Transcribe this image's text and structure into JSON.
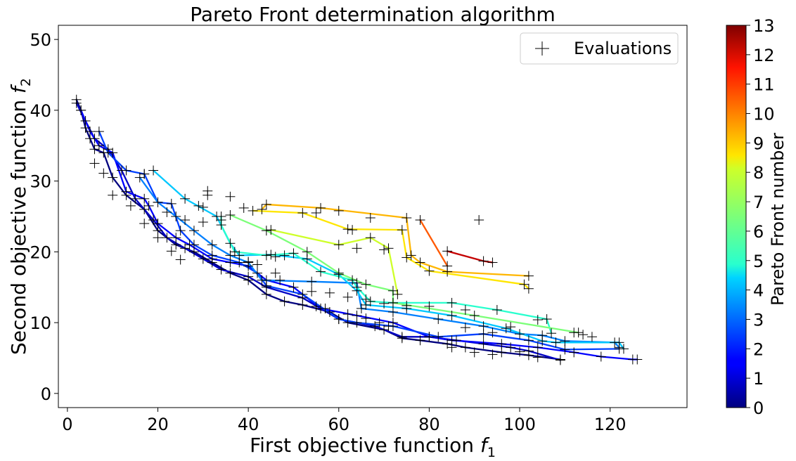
{
  "chart_data": {
    "type": "line",
    "title": "Pareto Front determination algorithm",
    "xlabel": "First objective function",
    "xlabel_symbol": "f",
    "xlabel_subscript": "1",
    "ylabel": "Second objective function",
    "ylabel_symbol": "f",
    "ylabel_subscript": "2",
    "xlim": [
      -2,
      137
    ],
    "ylim": [
      -2,
      52
    ],
    "xticks": [
      0,
      20,
      40,
      60,
      80,
      100,
      120
    ],
    "yticks": [
      0,
      10,
      20,
      30,
      40,
      50
    ],
    "legend": {
      "label": "Evaluations",
      "placement": "top-right"
    },
    "colorbar": {
      "label": "Pareto Front number",
      "min": 0,
      "max": 13,
      "ticks": [
        0,
        1,
        2,
        3,
        4,
        5,
        6,
        7,
        8,
        9,
        10,
        11,
        12,
        13
      ],
      "colormap": "jet"
    },
    "series": [
      {
        "name": "Front 0",
        "front": 0,
        "color": "#00007f",
        "points": [
          [
            2,
            41.5
          ],
          [
            3,
            40
          ],
          [
            4,
            37.5
          ],
          [
            5,
            36
          ],
          [
            6,
            34.5
          ],
          [
            8,
            34
          ],
          [
            10,
            30.5
          ],
          [
            13,
            28
          ],
          [
            17,
            26
          ],
          [
            20,
            23
          ],
          [
            24,
            21
          ],
          [
            28,
            20
          ],
          [
            32,
            18.5
          ],
          [
            36,
            17
          ],
          [
            40,
            16
          ],
          [
            44,
            14
          ],
          [
            48,
            13
          ],
          [
            52,
            12.5
          ],
          [
            58,
            11.5
          ],
          [
            62,
            10
          ],
          [
            70,
            9
          ],
          [
            74,
            7.8
          ],
          [
            78,
            7.5
          ],
          [
            84,
            7
          ],
          [
            88,
            6.5
          ],
          [
            96,
            5.8
          ],
          [
            102,
            5.4
          ],
          [
            109,
            4.8
          ]
        ]
      },
      {
        "name": "Front 1",
        "front": 1,
        "color": "#0000c4",
        "points": [
          [
            2,
            41
          ],
          [
            4,
            38.5
          ],
          [
            6,
            36
          ],
          [
            9,
            34.5
          ],
          [
            12,
            31.5
          ],
          [
            15,
            27.5
          ],
          [
            19,
            24.5
          ],
          [
            22,
            22
          ],
          [
            26,
            20.5
          ],
          [
            30,
            19
          ],
          [
            34,
            17.5
          ],
          [
            40,
            16.5
          ],
          [
            44,
            15
          ],
          [
            52,
            13.5
          ],
          [
            60,
            10.5
          ],
          [
            68,
            9.5
          ],
          [
            74,
            8
          ],
          [
            80,
            8
          ],
          [
            86,
            7.5
          ],
          [
            92,
            7
          ],
          [
            98,
            6.5
          ],
          [
            102,
            6
          ],
          [
            109,
            4.7
          ]
        ]
      },
      {
        "name": "Front 2",
        "front": 2,
        "color": "#0000ff",
        "points": [
          [
            3,
            40
          ],
          [
            5,
            37
          ],
          [
            7,
            35
          ],
          [
            10,
            34
          ],
          [
            13,
            28.5
          ],
          [
            17,
            27.5
          ],
          [
            18,
            26.5
          ],
          [
            20,
            24
          ],
          [
            24,
            22
          ],
          [
            27,
            21
          ],
          [
            32,
            19
          ],
          [
            36,
            18.5
          ],
          [
            40,
            18
          ],
          [
            44,
            16
          ],
          [
            50,
            15
          ],
          [
            56,
            12
          ],
          [
            64,
            11
          ],
          [
            72,
            10
          ],
          [
            80,
            8
          ],
          [
            85,
            7.5
          ],
          [
            96,
            7
          ],
          [
            104,
            6.5
          ],
          [
            112,
            5.8
          ],
          [
            118,
            5.2
          ],
          [
            125,
            4.8
          ],
          [
            126,
            4.8
          ]
        ]
      },
      {
        "name": "Front 3",
        "front": 3,
        "color": "#0040ff",
        "points": [
          [
            7,
            37
          ],
          [
            9,
            34
          ],
          [
            13,
            31.5
          ],
          [
            17,
            31
          ],
          [
            20,
            27
          ],
          [
            23,
            26.8
          ],
          [
            25,
            23
          ],
          [
            28,
            21
          ],
          [
            32,
            19.5
          ],
          [
            38,
            18.5
          ],
          [
            42,
            17
          ],
          [
            44,
            15.2
          ],
          [
            52,
            14
          ],
          [
            60,
            10.5
          ],
          [
            64,
            10
          ],
          [
            72,
            9.5
          ],
          [
            82,
            8
          ],
          [
            92,
            8.4
          ],
          [
            102,
            7.5
          ],
          [
            110,
            6.2
          ],
          [
            122,
            6.3
          ]
        ]
      },
      {
        "name": "Front 4",
        "front": 4,
        "color": "#0080ff",
        "points": [
          [
            16,
            30.5
          ],
          [
            20,
            27
          ],
          [
            24,
            25
          ],
          [
            28,
            23
          ],
          [
            32,
            21
          ],
          [
            36,
            19.5
          ],
          [
            40,
            18.5
          ],
          [
            43,
            16
          ],
          [
            54,
            15.8
          ],
          [
            64,
            15.6
          ],
          [
            65,
            12
          ],
          [
            72,
            11.5
          ],
          [
            82,
            10.5
          ],
          [
            92,
            9.5
          ],
          [
            100,
            8.4
          ],
          [
            105,
            8.2
          ],
          [
            110,
            7.4
          ],
          [
            121,
            7.2
          ],
          [
            122,
            6.5
          ]
        ]
      },
      {
        "name": "Front 5",
        "front": 5,
        "color": "#00c8ff",
        "points": [
          [
            19,
            31.5
          ],
          [
            26,
            27.5
          ],
          [
            33,
            25
          ],
          [
            36,
            21.2
          ],
          [
            38,
            19.5
          ],
          [
            45,
            19.6
          ],
          [
            53,
            19
          ],
          [
            60,
            16.8
          ],
          [
            64,
            14.5
          ],
          [
            66,
            12.5
          ],
          [
            75,
            12
          ],
          [
            85,
            11
          ],
          [
            97,
            9.2
          ],
          [
            105,
            7.4
          ],
          [
            108,
            7.2
          ],
          [
            122,
            7.2
          ],
          [
            123,
            6.3
          ]
        ]
      },
      {
        "name": "Front 6",
        "front": 6,
        "color": "#29ffce",
        "points": [
          [
            34,
            25
          ],
          [
            34,
            23.8
          ],
          [
            37,
            20
          ],
          [
            44,
            19.5
          ],
          [
            50,
            19.8
          ],
          [
            56,
            17.2
          ],
          [
            63,
            16
          ],
          [
            64,
            15
          ],
          [
            67,
            13
          ],
          [
            72,
            12.8
          ],
          [
            85,
            12.8
          ],
          [
            95,
            11.8
          ],
          [
            106,
            10.5
          ],
          [
            107,
            8.5
          ]
        ]
      },
      {
        "name": "Front 7",
        "front": 7,
        "color": "#7cff79",
        "points": [
          [
            36,
            25.2
          ],
          [
            44,
            23
          ],
          [
            53,
            20
          ],
          [
            60,
            17
          ],
          [
            66,
            15.4
          ],
          [
            72,
            14.5
          ],
          [
            72,
            12.8
          ],
          [
            90,
            11
          ],
          [
            113,
            8.6
          ]
        ]
      },
      {
        "name": "Front 8",
        "front": 8,
        "color": "#ceff29",
        "points": [
          [
            45,
            23.1
          ],
          [
            60,
            21
          ],
          [
            67,
            22
          ],
          [
            71,
            20.5
          ],
          [
            73,
            14
          ]
        ]
      },
      {
        "name": "Front 9",
        "front": 9,
        "color": "#ffe600",
        "points": [
          [
            41,
            25.8
          ],
          [
            52,
            25.5
          ],
          [
            62,
            23.2
          ],
          [
            74,
            23.1
          ],
          [
            75,
            19.2
          ],
          [
            80,
            17.3
          ],
          [
            101,
            15.4
          ],
          [
            102,
            14.8
          ]
        ]
      },
      {
        "name": "Front 10",
        "front": 10,
        "color": "#ffb600",
        "points": [
          [
            43,
            26
          ],
          [
            44,
            26.7
          ],
          [
            56,
            26.2
          ],
          [
            75,
            24.8
          ],
          [
            76,
            19.5
          ],
          [
            78,
            18.5
          ],
          [
            84,
            17.2
          ],
          [
            102,
            16.6
          ]
        ]
      },
      {
        "name": "Front 11",
        "front": 11,
        "color": "#ff5900",
        "points": [
          [
            78,
            24.5
          ],
          [
            84,
            18
          ]
        ]
      },
      {
        "name": "Front 12",
        "front": 12,
        "color": "#c40000",
        "points": [
          [
            84,
            20.1
          ],
          [
            92,
            18.7
          ],
          [
            94,
            18.5
          ]
        ]
      },
      {
        "name": "Front 13",
        "front": 13,
        "color": "#7f0000",
        "points": [
          [
            91,
            24.5
          ]
        ]
      }
    ],
    "evaluations": [
      [
        17,
        31
      ],
      [
        31,
        28.6
      ],
      [
        31,
        28
      ],
      [
        36,
        27.8
      ],
      [
        39,
        26.2
      ],
      [
        29,
        26.5
      ],
      [
        30,
        26.3
      ],
      [
        55,
        25.5
      ],
      [
        60,
        25.8
      ],
      [
        67,
        24.8
      ],
      [
        63,
        23.1
      ],
      [
        64,
        20.5
      ],
      [
        70,
        20.3
      ],
      [
        46,
        19.3
      ],
      [
        48,
        19.5
      ],
      [
        40,
        18.6
      ],
      [
        42,
        18.2
      ],
      [
        46,
        17
      ],
      [
        47,
        16
      ],
      [
        54,
        14.4
      ],
      [
        58,
        14.2
      ],
      [
        62,
        13.6
      ],
      [
        66,
        13.3
      ],
      [
        70,
        12.7
      ],
      [
        75,
        12.4
      ],
      [
        80,
        12.3
      ],
      [
        88,
        11.8
      ],
      [
        104,
        10.4
      ],
      [
        112,
        8.6
      ],
      [
        114,
        8.3
      ],
      [
        116,
        8
      ],
      [
        98,
        9.4
      ],
      [
        94,
        8.6
      ],
      [
        88,
        9.3
      ],
      [
        85,
        6.5
      ],
      [
        90,
        5.8
      ],
      [
        94,
        5.5
      ],
      [
        100,
        5.9
      ],
      [
        104,
        5.1
      ],
      [
        55,
        12.3
      ],
      [
        57,
        12
      ],
      [
        62,
        11.2
      ],
      [
        66,
        10.6
      ],
      [
        69,
        10
      ],
      [
        71,
        9.5
      ],
      [
        34,
        24.5
      ],
      [
        30,
        24.2
      ],
      [
        26,
        24.5
      ],
      [
        22,
        25.6
      ],
      [
        25,
        18.9
      ],
      [
        23,
        20.1
      ],
      [
        20,
        22
      ],
      [
        17,
        24
      ],
      [
        14,
        26.5
      ],
      [
        10,
        28
      ],
      [
        8,
        31.1
      ],
      [
        6,
        32.5
      ]
    ]
  }
}
